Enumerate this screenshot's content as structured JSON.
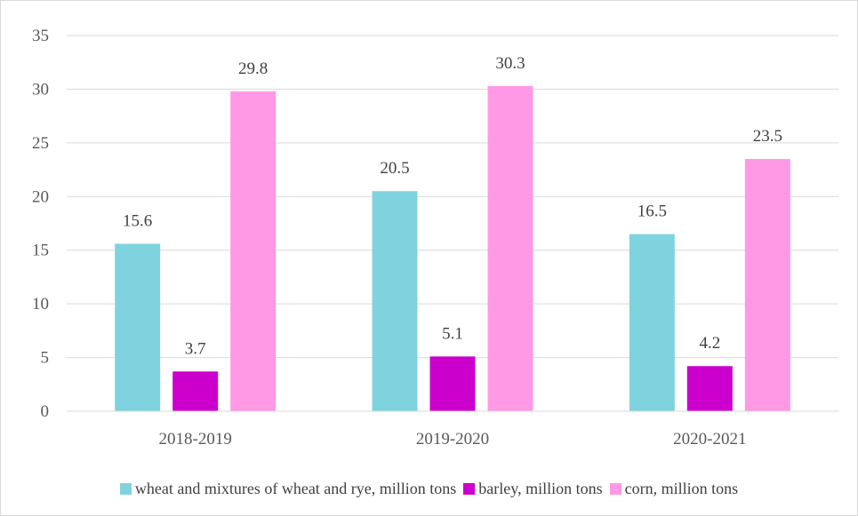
{
  "chart_data": {
    "type": "bar",
    "title": "",
    "xlabel": "",
    "ylabel": "",
    "categories": [
      "2018-2019",
      "2019-2020",
      "2020-2021"
    ],
    "ylim": [
      0,
      35
    ],
    "yticks": [
      0,
      5,
      10,
      15,
      20,
      25,
      30,
      35
    ],
    "grid": true,
    "legend_position": "bottom",
    "series": [
      {
        "name": "wheat and mixtures of wheat and rye, million tons",
        "values": [
          15.6,
          20.5,
          16.5
        ],
        "color": "#7fd3de"
      },
      {
        "name": "barley, million tons",
        "values": [
          3.7,
          5.1,
          4.2
        ],
        "color": "#cc00cc"
      },
      {
        "name": "corn, million tons",
        "values": [
          29.8,
          30.3,
          23.5
        ],
        "color": "#ff99e6"
      }
    ]
  }
}
